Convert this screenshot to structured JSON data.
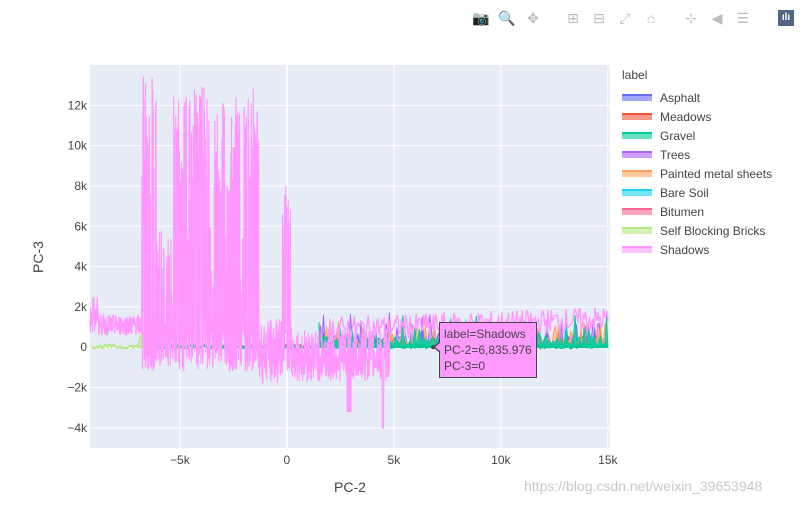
{
  "modebar": {
    "buttons": [
      {
        "name": "camera-icon",
        "glyph": "📷"
      },
      {
        "name": "zoom-icon",
        "glyph": "🔍",
        "active": true
      },
      {
        "name": "pan-icon",
        "glyph": "✥"
      },
      {
        "gap": true
      },
      {
        "name": "zoom-in-icon",
        "glyph": "⊞"
      },
      {
        "name": "zoom-out-icon",
        "glyph": "⊟"
      },
      {
        "name": "autoscale-icon",
        "glyph": "⤢"
      },
      {
        "name": "home-icon",
        "glyph": "⌂"
      },
      {
        "gap": true
      },
      {
        "name": "spike-lines-icon",
        "glyph": "⊹"
      },
      {
        "name": "hover-closest-icon",
        "glyph": "◀"
      },
      {
        "name": "hover-compare-icon",
        "glyph": "☰"
      },
      {
        "gap": true
      },
      {
        "name": "plotly-logo-icon",
        "glyph": "ılı",
        "logo": true
      }
    ]
  },
  "watermark": "https://blog.csdn.net/weixin_39653948",
  "tooltip": {
    "line1": "label=Shadows",
    "line2": "PC-2=6,835.976",
    "line3": "PC-3=0"
  },
  "chart_data": {
    "type": "area",
    "xlabel": "PC-2",
    "ylabel": "PC-3",
    "xlim": [
      -9200,
      15100
    ],
    "ylim": [
      -5000,
      14000
    ],
    "xticks": [
      -5000,
      0,
      5000,
      10000,
      15000
    ],
    "xtick_labels": [
      "−5k",
      "0",
      "5k",
      "10k",
      "15k"
    ],
    "yticks": [
      -4000,
      -2000,
      0,
      2000,
      4000,
      6000,
      8000,
      10000,
      12000
    ],
    "ytick_labels": [
      "−4k",
      "−2k",
      "0",
      "2k",
      "4k",
      "6k",
      "8k",
      "10k",
      "12k"
    ],
    "grid": true,
    "legend_title": "label",
    "legend_position": "right",
    "series": [
      {
        "name": "Asphalt",
        "color": "#636efa"
      },
      {
        "name": "Meadows",
        "color": "#ef553b"
      },
      {
        "name": "Gravel",
        "color": "#00cc96"
      },
      {
        "name": "Trees",
        "color": "#ab63fa"
      },
      {
        "name": "Painted metal sheets",
        "color": "#ffa15a"
      },
      {
        "name": "Bare Soil",
        "color": "#19d3f3"
      },
      {
        "name": "Bitumen",
        "color": "#ff6692"
      },
      {
        "name": "Self Blocking Bricks",
        "color": "#b6e880"
      },
      {
        "name": "Shadows",
        "color": "#ff97ff"
      }
    ],
    "regions": {
      "shadows_tall_spikes": [
        {
          "x0": -6800,
          "x1": -6100,
          "ymax": 13500
        },
        {
          "x0": -5300,
          "x1": -4700,
          "ymax": 12800
        },
        {
          "x0": -4600,
          "x1": -3600,
          "ymax": 12900
        },
        {
          "x0": -3400,
          "x1": -2900,
          "ymax": 12800
        },
        {
          "x0": -2800,
          "x1": -2200,
          "ymax": 13000
        },
        {
          "x0": -2000,
          "x1": -1300,
          "ymax": 12900
        },
        {
          "x0": -200,
          "x1": 200,
          "ymax": 8000
        }
      ],
      "shadows_negative_min": -4000,
      "right_band_max": 2300
    }
  }
}
